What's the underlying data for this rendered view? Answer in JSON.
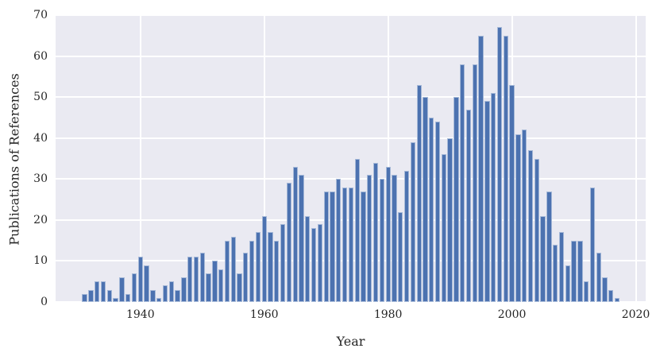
{
  "chart_data": {
    "type": "bar",
    "title": "",
    "xlabel": "Year",
    "ylabel": "Publications of References",
    "xlim": [
      1926.3,
      2021.6
    ],
    "ylim": [
      0,
      70
    ],
    "x_ticks": [
      1940,
      1960,
      1980,
      2000,
      2020
    ],
    "y_ticks": [
      0,
      10,
      20,
      30,
      40,
      50,
      60,
      70
    ],
    "grid": true,
    "legend": "none",
    "bar_color": "#4c72b0",
    "bar_edge_color": "rgba(255,255,255,0.5)",
    "plot_bg_color": "#eaeaf2",
    "grid_color": "#ffffff",
    "text_color": "#262626",
    "figure_bg_color": "#ffffff",
    "years": [
      1931,
      1932,
      1933,
      1934,
      1935,
      1936,
      1937,
      1938,
      1939,
      1940,
      1941,
      1942,
      1943,
      1944,
      1945,
      1946,
      1947,
      1948,
      1949,
      1950,
      1951,
      1952,
      1953,
      1954,
      1955,
      1956,
      1957,
      1958,
      1959,
      1960,
      1961,
      1962,
      1963,
      1964,
      1965,
      1966,
      1967,
      1968,
      1969,
      1970,
      1971,
      1972,
      1973,
      1974,
      1975,
      1976,
      1977,
      1978,
      1979,
      1980,
      1981,
      1982,
      1983,
      1984,
      1985,
      1986,
      1987,
      1988,
      1989,
      1990,
      1991,
      1992,
      1993,
      1994,
      1995,
      1996,
      1997,
      1998,
      1999,
      2000,
      2001,
      2002,
      2003,
      2004,
      2005,
      2006,
      2007,
      2008,
      2009,
      2010,
      2011,
      2012,
      2013,
      2014,
      2015,
      2016,
      2017
    ],
    "values": [
      2,
      3,
      5,
      5,
      3,
      1,
      6,
      2,
      7,
      11,
      9,
      3,
      1,
      4,
      5,
      3,
      6,
      11,
      11,
      12,
      7,
      10,
      8,
      15,
      16,
      7,
      12,
      15,
      17,
      21,
      17,
      15,
      19,
      29,
      33,
      31,
      21,
      18,
      19,
      27,
      27,
      30,
      28,
      28,
      35,
      27,
      31,
      34,
      30,
      33,
      31,
      22,
      32,
      39,
      53,
      50,
      45,
      44,
      36,
      40,
      50,
      58,
      47,
      58,
      65,
      49,
      51,
      67,
      65,
      53,
      41,
      42,
      37,
      35,
      21,
      27,
      14,
      17,
      9,
      15,
      15,
      5,
      28,
      12,
      6,
      3,
      1
    ]
  }
}
